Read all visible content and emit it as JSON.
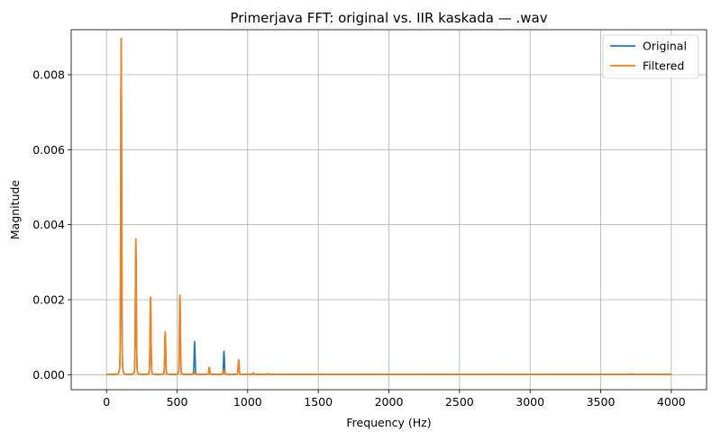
{
  "chart_data": {
    "type": "line",
    "title": "Primerjava FFT: original vs. IIR kaskada — .wav",
    "xlabel": "Frequency (Hz)",
    "ylabel": "Magnitude",
    "xlim": [
      -250,
      4250
    ],
    "ylim": [
      -0.0004,
      0.0092
    ],
    "xticks": [
      0,
      500,
      1000,
      1500,
      2000,
      2500,
      3000,
      3500,
      4000
    ],
    "xtick_labels": [
      "0",
      "500",
      "1000",
      "1500",
      "2000",
      "2500",
      "3000",
      "3500",
      "4000"
    ],
    "yticks": [
      0.0,
      0.002,
      0.004,
      0.006,
      0.008
    ],
    "ytick_labels": [
      "0.000",
      "0.002",
      "0.004",
      "0.006",
      "0.008"
    ],
    "grid": true,
    "legend": "top-right",
    "series": [
      {
        "name": "Original",
        "color": "#1f77b4",
        "peaks": [
          [
            104,
            0.0087
          ],
          [
            208,
            0.0035
          ],
          [
            312,
            0.002
          ],
          [
            416,
            0.0011
          ],
          [
            520,
            0.00205
          ],
          [
            624,
            0.00085
          ],
          [
            728,
            0.00018
          ],
          [
            832,
            0.0006
          ],
          [
            936,
            0.00038
          ],
          [
            1040,
            4e-05
          ],
          [
            1144,
            2e-05
          ]
        ]
      },
      {
        "name": "Filtered",
        "color": "#ff7f0e",
        "peaks": [
          [
            104,
            0.0087
          ],
          [
            208,
            0.0035
          ],
          [
            312,
            0.002
          ],
          [
            416,
            0.0011
          ],
          [
            520,
            0.00205
          ],
          [
            624,
            6e-05
          ],
          [
            728,
            0.00018
          ],
          [
            832,
            0.00012
          ],
          [
            936,
            0.00038
          ],
          [
            1040,
            3e-05
          ],
          [
            1144,
            2e-05
          ],
          [
            3720,
            2e-05
          ]
        ]
      }
    ]
  }
}
